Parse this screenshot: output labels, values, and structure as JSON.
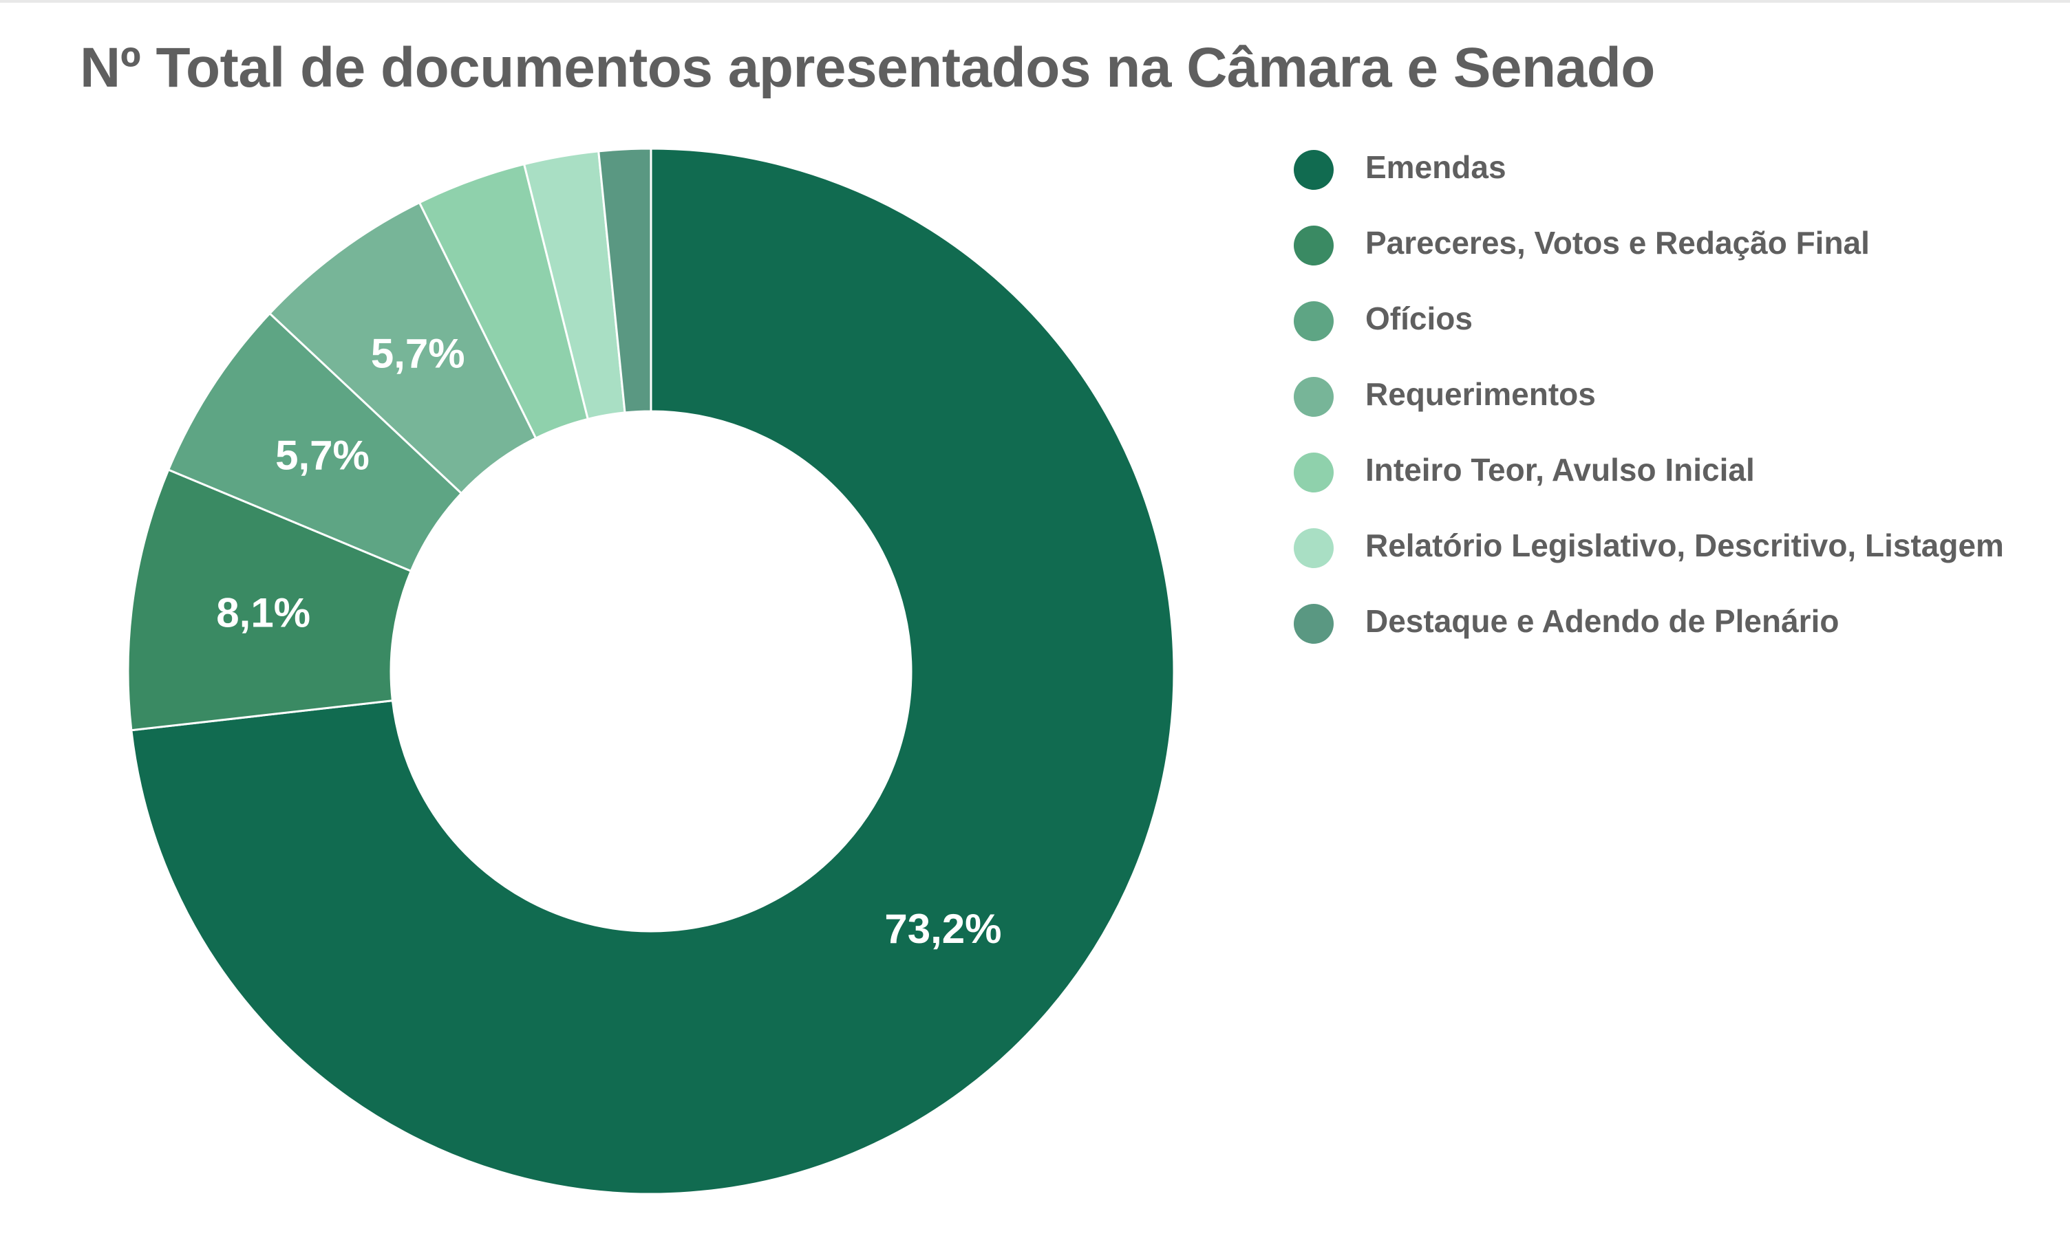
{
  "chart_data": {
    "type": "pie",
    "title": "Nº Total de documentos apresentados na Câmara e Senado",
    "donut": true,
    "legend_position": "right",
    "categories": [
      "Emendas",
      "Pareceres, Votos e Redação Final",
      "Ofícios",
      "Requerimentos",
      "Inteiro Teor, Avulso Inicial",
      "Relatório Legislativo, Descritivo, Listagem",
      "Destaque e Adendo de Plenário"
    ],
    "values": [
      73.2,
      8.1,
      5.7,
      5.7,
      3.4,
      2.3,
      1.6
    ],
    "data_labels": [
      "73,2%",
      "8,1%",
      "5,7%",
      "5,7%",
      "",
      "",
      ""
    ],
    "colors": [
      "#116b50",
      "#3a8a63",
      "#5ea584",
      "#77b598",
      "#8fd1ac",
      "#a9dfc4",
      "#5a9882"
    ]
  }
}
